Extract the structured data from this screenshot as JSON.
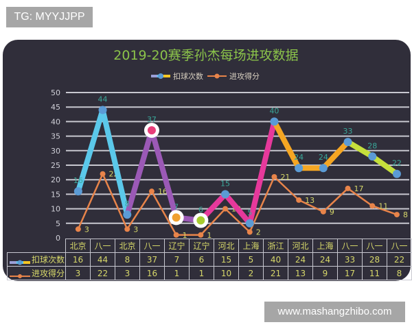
{
  "watermarks": {
    "top": "TG: MYYJJPP",
    "bottom": "www.mashangzhibo.com"
  },
  "chart_data": {
    "type": "line",
    "title": "2019-20赛季孙杰每场进攻数据",
    "xlabel": "",
    "ylabel": "",
    "ylim": [
      0,
      50
    ],
    "yticks": [
      0,
      5,
      10,
      15,
      20,
      25,
      30,
      35,
      40,
      45,
      50
    ],
    "grid": true,
    "legend_position": "top",
    "categories": [
      "北京",
      "八一",
      "北京",
      "八一",
      "辽宁",
      "辽宁",
      "河北",
      "上海",
      "浙江",
      "河北",
      "上海",
      "八一",
      "八一",
      "八一"
    ],
    "series": [
      {
        "name": "扣球次数",
        "values": [
          16,
          44,
          8,
          37,
          7,
          6,
          15,
          5,
          40,
          24,
          24,
          33,
          28,
          22
        ],
        "segment_colors": [
          "#5bc8ea",
          "#5bc8ea",
          "#9b59b6",
          "#9b59b6",
          "#9b59b6",
          "#e6399b",
          "#e6399b",
          "#e6399b",
          "#f5a623",
          "#f5a623",
          "#f5a623",
          "#c5e03c",
          "#c5e03c"
        ],
        "marker_color": "#5b9bd5",
        "label_color": "#3aa89a"
      },
      {
        "name": "进攻得分",
        "values": [
          3,
          22,
          3,
          16,
          1,
          1,
          10,
          2,
          21,
          13,
          9,
          17,
          11,
          8
        ],
        "color": "#e8844a",
        "label_color": "#d7d86a"
      }
    ],
    "highlight_markers": [
      {
        "index": 3,
        "series": 0,
        "inner": "#e83e7a"
      },
      {
        "index": 4,
        "series": 0,
        "inner": "#f0a030"
      },
      {
        "index": 5,
        "series": 0,
        "inner": "#a8cc30"
      }
    ],
    "table": {
      "row_headers": [
        "扣球次数",
        "进攻得分"
      ]
    }
  },
  "colors": {
    "panel_bg": "#302e3a",
    "title": "#8bc34a",
    "grid": "#c8c8d0",
    "axis_text": "#d0d0d8"
  }
}
